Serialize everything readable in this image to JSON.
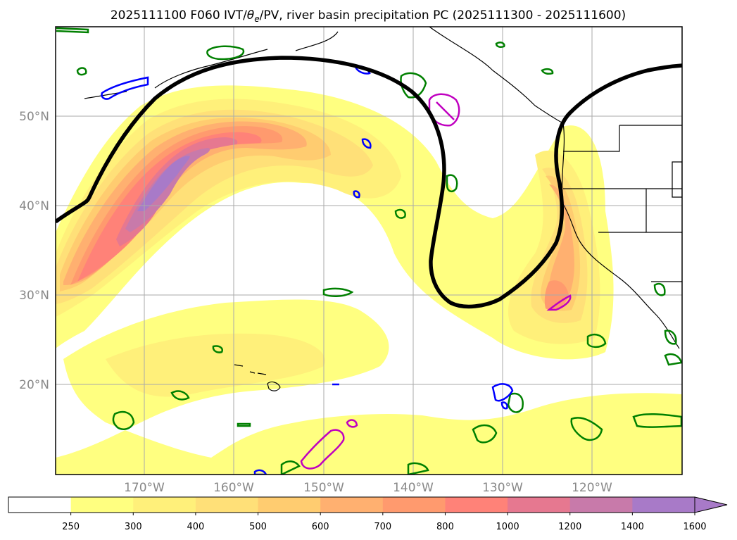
{
  "title": {
    "prefix": "2025111100 F060 IVT/",
    "theta": "θ",
    "sub": "e",
    "suffix": "/PV, river basin precipitation PC (2025111300 - 2025111600)"
  },
  "axes": {
    "lat_labels": [
      "50°N",
      "40°N",
      "30°N",
      "20°N"
    ],
    "lon_labels": [
      "170°W",
      "160°W",
      "150°W",
      "140°W",
      "130°W",
      "120°W"
    ]
  },
  "colorbar": {
    "ticks": [
      "250",
      "300",
      "400",
      "500",
      "600",
      "700",
      "800",
      "1000",
      "1200",
      "1400",
      "1600"
    ],
    "colors": [
      "#ffffff",
      "#ffff80",
      "#fff07a",
      "#ffe078",
      "#ffcc70",
      "#ffb070",
      "#ff9a6e",
      "#ff8278",
      "#e67890",
      "#c87aaa",
      "#a87ac8"
    ]
  },
  "legend_colors": {
    "theta_contour": "#000000",
    "pv_blue": "#0000ff",
    "pv_green": "#008000",
    "pv_magenta": "#c000c0"
  }
}
